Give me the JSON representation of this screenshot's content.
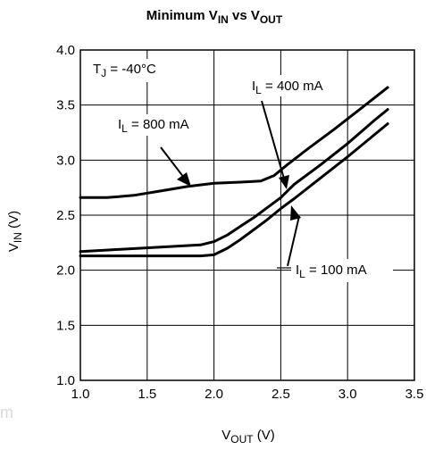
{
  "chart_data": {
    "type": "line",
    "title": {
      "main": "Minimum V",
      "sub1": "IN",
      "mid": " vs V",
      "sub2": "OUT"
    },
    "xlabel": {
      "main": "V",
      "sub": "OUT",
      "unit": " (V)"
    },
    "ylabel": {
      "main": "V",
      "sub": "IN",
      "unit": " (V)"
    },
    "xlim": [
      1.0,
      3.5
    ],
    "ylim": [
      1.0,
      4.0
    ],
    "xticks": [
      "1.0",
      "1.5",
      "2.0",
      "2.5",
      "3.0",
      "3.5"
    ],
    "yticks": [
      "1.0",
      "1.5",
      "2.0",
      "2.5",
      "3.0",
      "3.5",
      "4.0"
    ],
    "grid": true,
    "annotation_tj": {
      "main": "T",
      "sub": "J",
      "rest": " = -40°C"
    },
    "series": [
      {
        "name": "I_L = 800 mA",
        "label": {
          "main": "I",
          "sub": "L",
          "rest": " = 800 mA"
        },
        "x": [
          1.0,
          1.2,
          1.4,
          1.6,
          1.8,
          2.0,
          2.2,
          2.35,
          2.45,
          2.55,
          2.7,
          2.9,
          3.1,
          3.3
        ],
        "y": [
          2.66,
          2.66,
          2.68,
          2.72,
          2.76,
          2.79,
          2.8,
          2.81,
          2.86,
          2.96,
          3.1,
          3.28,
          3.47,
          3.66
        ]
      },
      {
        "name": "I_L = 400 mA",
        "label": {
          "main": "I",
          "sub": "L",
          "rest": " = 400 mA"
        },
        "x": [
          1.0,
          1.3,
          1.6,
          1.9,
          2.0,
          2.1,
          2.2,
          2.3,
          2.4,
          2.5,
          2.6,
          2.8,
          3.0,
          3.2,
          3.3
        ],
        "y": [
          2.17,
          2.19,
          2.21,
          2.23,
          2.26,
          2.32,
          2.4,
          2.48,
          2.57,
          2.66,
          2.78,
          2.96,
          3.15,
          3.36,
          3.46
        ]
      },
      {
        "name": "I_L = 100 mA",
        "label": {
          "main": "I",
          "sub": "L",
          "rest": " = 100 mA"
        },
        "x": [
          1.0,
          1.3,
          1.6,
          1.9,
          2.0,
          2.1,
          2.2,
          2.3,
          2.4,
          2.5,
          2.6,
          2.8,
          3.0,
          3.2,
          3.3
        ],
        "y": [
          2.13,
          2.13,
          2.13,
          2.13,
          2.14,
          2.2,
          2.28,
          2.37,
          2.46,
          2.56,
          2.65,
          2.84,
          3.03,
          3.23,
          3.33
        ]
      }
    ]
  },
  "watermark": "m"
}
